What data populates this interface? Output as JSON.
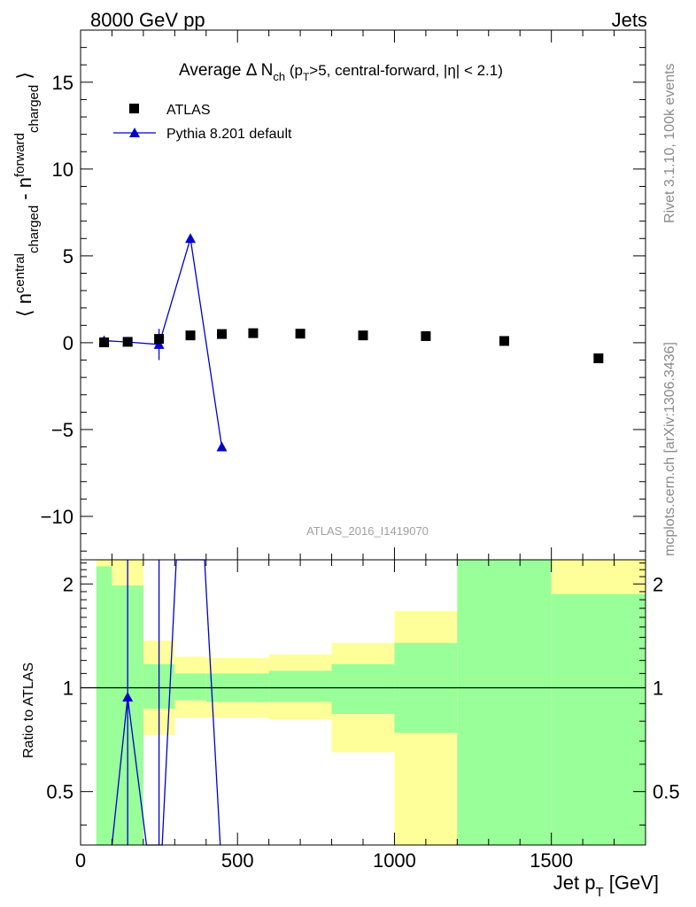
{
  "header": {
    "left": "8000 GeV pp",
    "right": "Jets"
  },
  "side_text": {
    "rivet": "Rivet 3.1.10,  100k events",
    "mcplots": "mcplots.cern.ch [arXiv:1306.3436]"
  },
  "watermark": "ATLAS_2016_I1419070",
  "colors": {
    "data": "#000000",
    "mc": "#0000cc",
    "band_inner": "#99ff99",
    "band_outer": "#ffff99"
  },
  "chart_data": [
    {
      "type": "scatter",
      "panel": "main",
      "title_parts": {
        "pre": "Average ",
        "delta": "Δ N",
        "ch_sub": "ch",
        "paren_open": " (p",
        "t_sub": "T",
        "rest": ">5, central-forward, |η| < 2.1)"
      },
      "ylabel_parts": {
        "open": "⟨ n",
        "central": "central",
        "charged1": "charged",
        "minus": " - n",
        "forward": "forward",
        "charged2": "charged",
        "close": " ⟩"
      },
      "xlim": [
        0,
        1800
      ],
      "ylim": [
        -12.5,
        18
      ],
      "ytick_values": [
        -10,
        -5,
        0,
        5,
        10,
        15
      ],
      "ytick_labels": [
        "−10",
        "−5",
        "0",
        "5",
        "10",
        "15"
      ],
      "series": [
        {
          "name": "ATLAS",
          "marker": "square",
          "x": [
            75,
            150,
            250,
            350,
            450,
            550,
            700,
            900,
            1100,
            1350,
            1650
          ],
          "y": [
            0.02,
            0.05,
            0.22,
            0.42,
            0.5,
            0.55,
            0.52,
            0.42,
            0.38,
            0.1,
            -0.9
          ],
          "yerr": [
            0.05,
            0.05,
            0.08,
            0.06,
            0.07,
            0.06,
            0.06,
            0.06,
            0.08,
            0.07,
            0.08
          ]
        },
        {
          "name": "Pythia 8.201 default",
          "marker": "triangle",
          "x": [
            75,
            150,
            250,
            350,
            450
          ],
          "y": [
            0.12,
            0.04,
            -0.1,
            6.0,
            -6.0
          ],
          "yerr": [
            0.15,
            0.15,
            0.9,
            0.1,
            0.1
          ]
        }
      ]
    },
    {
      "type": "line",
      "panel": "ratio",
      "ylabel": "Ratio to ATLAS",
      "xlabel_parts": {
        "pre": "Jet p",
        "sub": "T",
        "post": " [GeV]"
      },
      "xlim": [
        0,
        1800
      ],
      "ylim": [
        0.35,
        2.35
      ],
      "ytick_values": [
        0.5,
        1,
        2
      ],
      "ytick_labels": [
        "0.5",
        "1",
        "2"
      ],
      "xtick_values": [
        0,
        500,
        1000,
        1500
      ],
      "xtick_labels": [
        "0",
        "500",
        "1000",
        "1500"
      ],
      "bands": [
        {
          "x0": 50,
          "x1": 100,
          "inner": [
            0.35,
            2.25
          ],
          "outer": [
            0.35,
            2.35
          ]
        },
        {
          "x0": 100,
          "x1": 200,
          "inner": [
            0.35,
            1.98
          ],
          "outer": [
            0.35,
            2.35
          ]
        },
        {
          "x0": 200,
          "x1": 300,
          "inner": [
            0.87,
            1.17
          ],
          "outer": [
            0.73,
            1.37
          ]
        },
        {
          "x0": 300,
          "x1": 400,
          "inner": [
            0.92,
            1.1
          ],
          "outer": [
            0.82,
            1.23
          ]
        },
        {
          "x0": 400,
          "x1": 600,
          "inner": [
            0.91,
            1.1
          ],
          "outer": [
            0.82,
            1.22
          ]
        },
        {
          "x0": 600,
          "x1": 800,
          "inner": [
            0.91,
            1.12
          ],
          "outer": [
            0.81,
            1.25
          ]
        },
        {
          "x0": 800,
          "x1": 1000,
          "inner": [
            0.84,
            1.17
          ],
          "outer": [
            0.65,
            1.35
          ]
        },
        {
          "x0": 1000,
          "x1": 1200,
          "inner": [
            0.74,
            1.35
          ],
          "outer": [
            0.35,
            1.67
          ]
        },
        {
          "x0": 1200,
          "x1": 1500,
          "inner": [
            0.35,
            2.35
          ],
          "outer": [
            0.35,
            2.35
          ]
        },
        {
          "x0": 1500,
          "x1": 1800,
          "inner": [
            0.35,
            1.87
          ],
          "outer": [
            0.35,
            2.35
          ]
        }
      ],
      "reference": 1,
      "mc_ratio": {
        "x": [
          100,
          150,
          210,
          260,
          305,
          395,
          445
        ],
        "y": [
          0.35,
          0.94,
          0.35,
          0.35,
          2.35,
          2.35,
          0.35
        ]
      },
      "mc_vlines": [
        150,
        250
      ],
      "mc_marker": {
        "x": 150,
        "y": 0.94
      }
    }
  ]
}
